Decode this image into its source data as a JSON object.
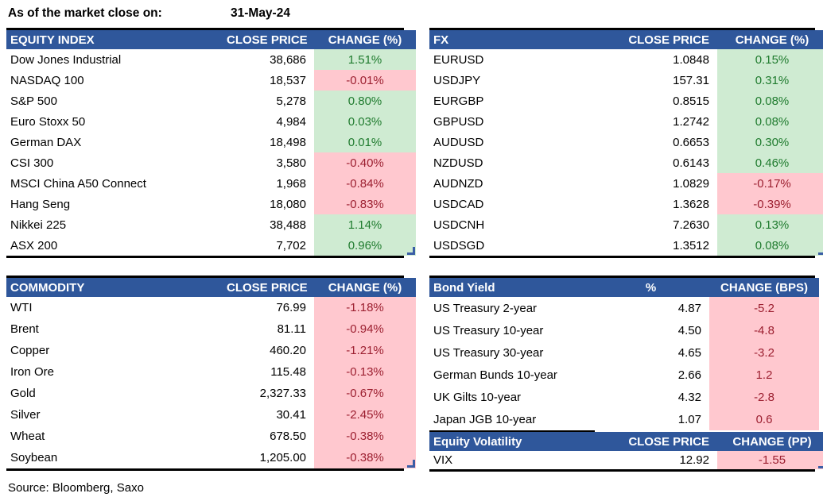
{
  "meta": {
    "as_of_label": "As of the market close on:",
    "as_of_date": "31-May-24",
    "source": "Source: Bloomberg, Saxo"
  },
  "colors": {
    "header_bg": "#2F579B",
    "header_text": "#FFFFFF",
    "positive_bg": "#CFEBD2",
    "positive_text": "#1F7B2E",
    "negative_bg": "#FFC8CF",
    "negative_text": "#9C1F30",
    "handle_blue": "#3B5EA6"
  },
  "tables": {
    "equity_index": {
      "columns": [
        "EQUITY INDEX",
        "CLOSE PRICE",
        "CHANGE (%)"
      ],
      "rows": [
        {
          "label": "Dow Jones Industrial",
          "value": "38,686",
          "change": "1.51%",
          "tone": "pos"
        },
        {
          "label": "NASDAQ 100",
          "value": "18,537",
          "change": "-0.01%",
          "tone": "neg"
        },
        {
          "label": "S&P 500",
          "value": "5,278",
          "change": "0.80%",
          "tone": "pos"
        },
        {
          "label": "Euro Stoxx 50",
          "value": "4,984",
          "change": "0.03%",
          "tone": "pos"
        },
        {
          "label": "German DAX",
          "value": "18,498",
          "change": "0.01%",
          "tone": "pos"
        },
        {
          "label": "CSI 300",
          "value": "3,580",
          "change": "-0.40%",
          "tone": "neg"
        },
        {
          "label": "MSCI China A50 Connect",
          "value": "1,968",
          "change": "-0.84%",
          "tone": "neg"
        },
        {
          "label": "Hang Seng",
          "value": "18,080",
          "change": "-0.83%",
          "tone": "neg"
        },
        {
          "label": "Nikkei 225",
          "value": "38,488",
          "change": "1.14%",
          "tone": "pos"
        },
        {
          "label": "ASX 200",
          "value": "7,702",
          "change": "0.96%",
          "tone": "pos"
        }
      ]
    },
    "fx": {
      "columns": [
        "FX",
        "CLOSE PRICE",
        "CHANGE (%)"
      ],
      "rows": [
        {
          "label": "EURUSD",
          "value": "1.0848",
          "change": "0.15%",
          "tone": "pos"
        },
        {
          "label": "USDJPY",
          "value": "157.31",
          "change": "0.31%",
          "tone": "pos"
        },
        {
          "label": "EURGBP",
          "value": "0.8515",
          "change": "0.08%",
          "tone": "pos"
        },
        {
          "label": "GBPUSD",
          "value": "1.2742",
          "change": "0.08%",
          "tone": "pos"
        },
        {
          "label": "AUDUSD",
          "value": "0.6653",
          "change": "0.30%",
          "tone": "pos"
        },
        {
          "label": "NZDUSD",
          "value": "0.6143",
          "change": "0.46%",
          "tone": "pos"
        },
        {
          "label": "AUDNZD",
          "value": "1.0829",
          "change": "-0.17%",
          "tone": "neg"
        },
        {
          "label": "USDCAD",
          "value": "1.3628",
          "change": "-0.39%",
          "tone": "neg"
        },
        {
          "label": "USDCNH",
          "value": "7.2630",
          "change": "0.13%",
          "tone": "pos"
        },
        {
          "label": "USDSGD",
          "value": "1.3512",
          "change": "0.08%",
          "tone": "pos"
        }
      ]
    },
    "commodity": {
      "columns": [
        "COMMODITY",
        "CLOSE PRICE",
        "CHANGE (%)"
      ],
      "rows": [
        {
          "label": "WTI",
          "value": "76.99",
          "change": "-1.18%",
          "tone": "neg"
        },
        {
          "label": "Brent",
          "value": "81.11",
          "change": "-0.94%",
          "tone": "neg"
        },
        {
          "label": "Copper",
          "value": "460.20",
          "change": "-1.21%",
          "tone": "neg"
        },
        {
          "label": "Iron Ore",
          "value": "115.48",
          "change": "-0.13%",
          "tone": "neg"
        },
        {
          "label": "Gold",
          "value": "2,327.33",
          "change": "-0.67%",
          "tone": "neg"
        },
        {
          "label": "Silver",
          "value": "30.41",
          "change": "-2.45%",
          "tone": "neg"
        },
        {
          "label": "Wheat",
          "value": "678.50",
          "change": "-0.38%",
          "tone": "neg"
        },
        {
          "label": "Soybean",
          "value": "1,205.00",
          "change": "-0.38%",
          "tone": "neg"
        }
      ]
    },
    "bond_yield": {
      "columns": [
        "Bond Yield",
        "%",
        "CHANGE (BPS)"
      ],
      "rows": [
        {
          "label": "US Treasury 2-year",
          "value": "4.87",
          "change": "-5.2",
          "tone": "neg"
        },
        {
          "label": "US Treasury 10-year",
          "value": "4.50",
          "change": "-4.8",
          "tone": "neg"
        },
        {
          "label": "US Treasury 30-year",
          "value": "4.65",
          "change": "-3.2",
          "tone": "neg"
        },
        {
          "label": "German Bunds 10-year",
          "value": "2.66",
          "change": "1.2",
          "tone": "neg"
        },
        {
          "label": "UK Gilts 10-year",
          "value": "4.32",
          "change": "-2.8",
          "tone": "neg"
        },
        {
          "label": "Japan JGB 10-year",
          "value": "1.07",
          "change": "0.6",
          "tone": "neg"
        }
      ]
    },
    "equity_volatility": {
      "columns": [
        "Equity Volatility",
        "CLOSE PRICE",
        "CHANGE (PP)"
      ],
      "rows": [
        {
          "label": "VIX",
          "value": "12.92",
          "change": "-1.55",
          "tone": "neg"
        }
      ]
    }
  }
}
